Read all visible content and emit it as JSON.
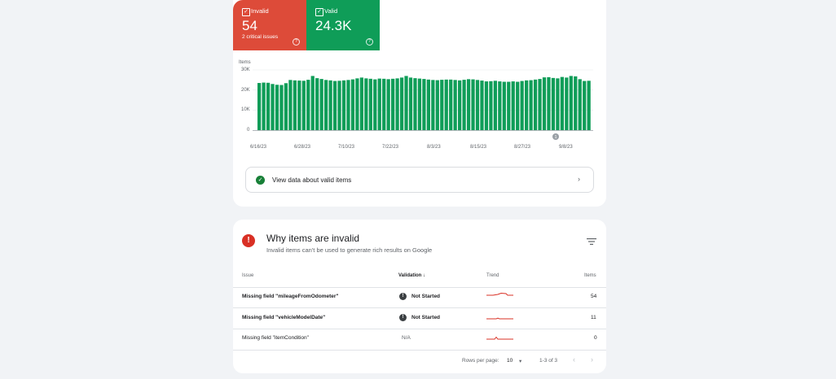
{
  "summary": {
    "invalid": {
      "label": "Invalid",
      "count": "54",
      "sub": "2 critical issues",
      "color": "#dd4b39"
    },
    "valid": {
      "label": "Valid",
      "count": "24.3K",
      "color": "#0f9d58"
    }
  },
  "chart_data": {
    "type": "bar",
    "ylabel": "Items",
    "yticks": [
      "30K",
      "20K",
      "10K",
      "0"
    ],
    "ylim": [
      0,
      30000
    ],
    "xticks": [
      "6/16/23",
      "6/28/23",
      "7/10/23",
      "7/22/23",
      "8/3/23",
      "8/15/23",
      "8/27/23",
      "9/8/23"
    ],
    "annotation": "1",
    "color": "#0f9d58",
    "values": [
      23500,
      23700,
      23600,
      23000,
      22600,
      22500,
      23400,
      25000,
      24800,
      24700,
      24600,
      25100,
      27000,
      25900,
      25500,
      25000,
      24800,
      24500,
      24600,
      24800,
      25000,
      25300,
      25800,
      26200,
      25800,
      25600,
      25300,
      25700,
      25600,
      25400,
      25600,
      25800,
      26200,
      27000,
      26200,
      25900,
      25700,
      25500,
      25200,
      25000,
      24900,
      25100,
      25200,
      25200,
      25000,
      24800,
      25100,
      25400,
      25300,
      25000,
      24700,
      24300,
      24400,
      24600,
      24300,
      24100,
      24100,
      24300,
      24100,
      24500,
      24800,
      24900,
      25200,
      25500,
      26300,
      26400,
      26000,
      25800,
      26500,
      26200,
      27000,
      26800,
      25400,
      24500,
      24600
    ]
  },
  "valid_link": {
    "text": "View data about valid items"
  },
  "issues_section": {
    "title": "Why items are invalid",
    "subtitle": "Invalid items can't be used to generate rich results on Google",
    "columns": {
      "issue": "Issue",
      "validation": "Validation",
      "trend": "Trend",
      "items": "Items"
    },
    "rows": [
      {
        "issue": "Missing field \"mileageFromOdometer\"",
        "validation": "Not Started",
        "items": "54"
      },
      {
        "issue": "Missing field \"vehicleModelDate\"",
        "validation": "Not Started",
        "items": "11"
      },
      {
        "issue": "Missing field \"itemCondition\"",
        "validation": "N/A",
        "items": "0"
      }
    ]
  },
  "pagination": {
    "rows_per_page_label": "Rows per page:",
    "rows_per_page": "10",
    "range": "1-3 of 3"
  }
}
